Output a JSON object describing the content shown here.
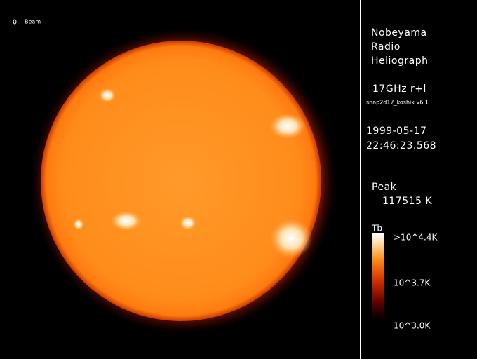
{
  "image": {
    "beam_label": "Beam",
    "instrument": [
      "Nobeyama",
      "Radio",
      "Heliograph"
    ],
    "frequency": "17GHz r+l",
    "software": "snap2d17_koshix v6.1",
    "date": "1999-05-17",
    "time": "22:46:23.568",
    "peak_label": "Peak",
    "peak_value": "117515 K",
    "colorbar": {
      "title": "Tb",
      "labels": [
        ">10^4.4K",
        "10^3.7K",
        "10^3.0K"
      ]
    }
  }
}
